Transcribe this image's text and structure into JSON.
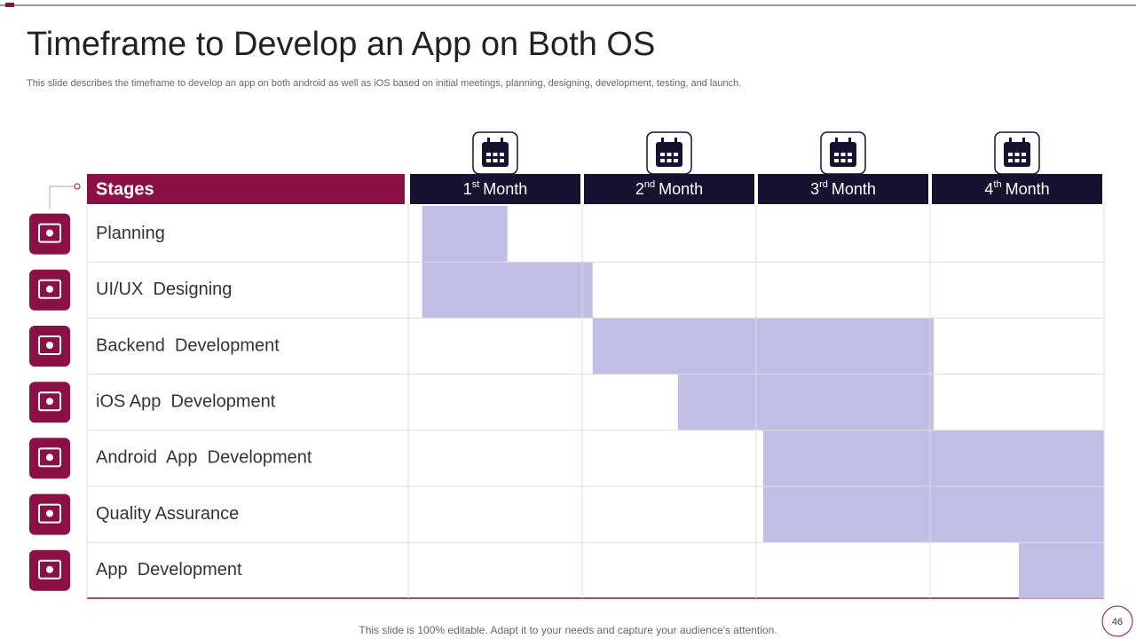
{
  "header": {
    "title": "Timeframe to Develop an App on Both OS",
    "subtitle": "This slide describes the timeframe to develop an app on both android as well as iOS based on initial meetings, planning, designing, development, testing, and launch."
  },
  "table": {
    "stages_header": "Stages",
    "months": [
      {
        "ordinal": "1",
        "suffix": "st",
        "word": "Month"
      },
      {
        "ordinal": "2",
        "suffix": "nd",
        "word": "Month"
      },
      {
        "ordinal": "3",
        "suffix": "rd",
        "word": "Month"
      },
      {
        "ordinal": "4",
        "suffix": "th",
        "word": "Month"
      }
    ],
    "rows": [
      "Planning",
      "UI/UX  Designing",
      "Backend  Development",
      "iOS App  Development",
      "Android  App  Development",
      "Quality Assurance",
      "App  Development"
    ]
  },
  "timeline": {
    "xlim": [
      0,
      4
    ],
    "color": "#c1bee6",
    "bars": [
      {
        "start": 0.08,
        "end": 0.57
      },
      {
        "start": 0.08,
        "end": 1.06
      },
      {
        "start": 1.06,
        "end": 3.02
      },
      {
        "start": 1.55,
        "end": 3.02
      },
      {
        "start": 2.04,
        "end": 4
      },
      {
        "start": 2.04,
        "end": 4
      },
      {
        "start": 3.51,
        "end": 4
      }
    ]
  },
  "footer": {
    "note": "This slide is 100% editable. Adapt it to your needs and capture your audience's attention.",
    "page": 46
  }
}
